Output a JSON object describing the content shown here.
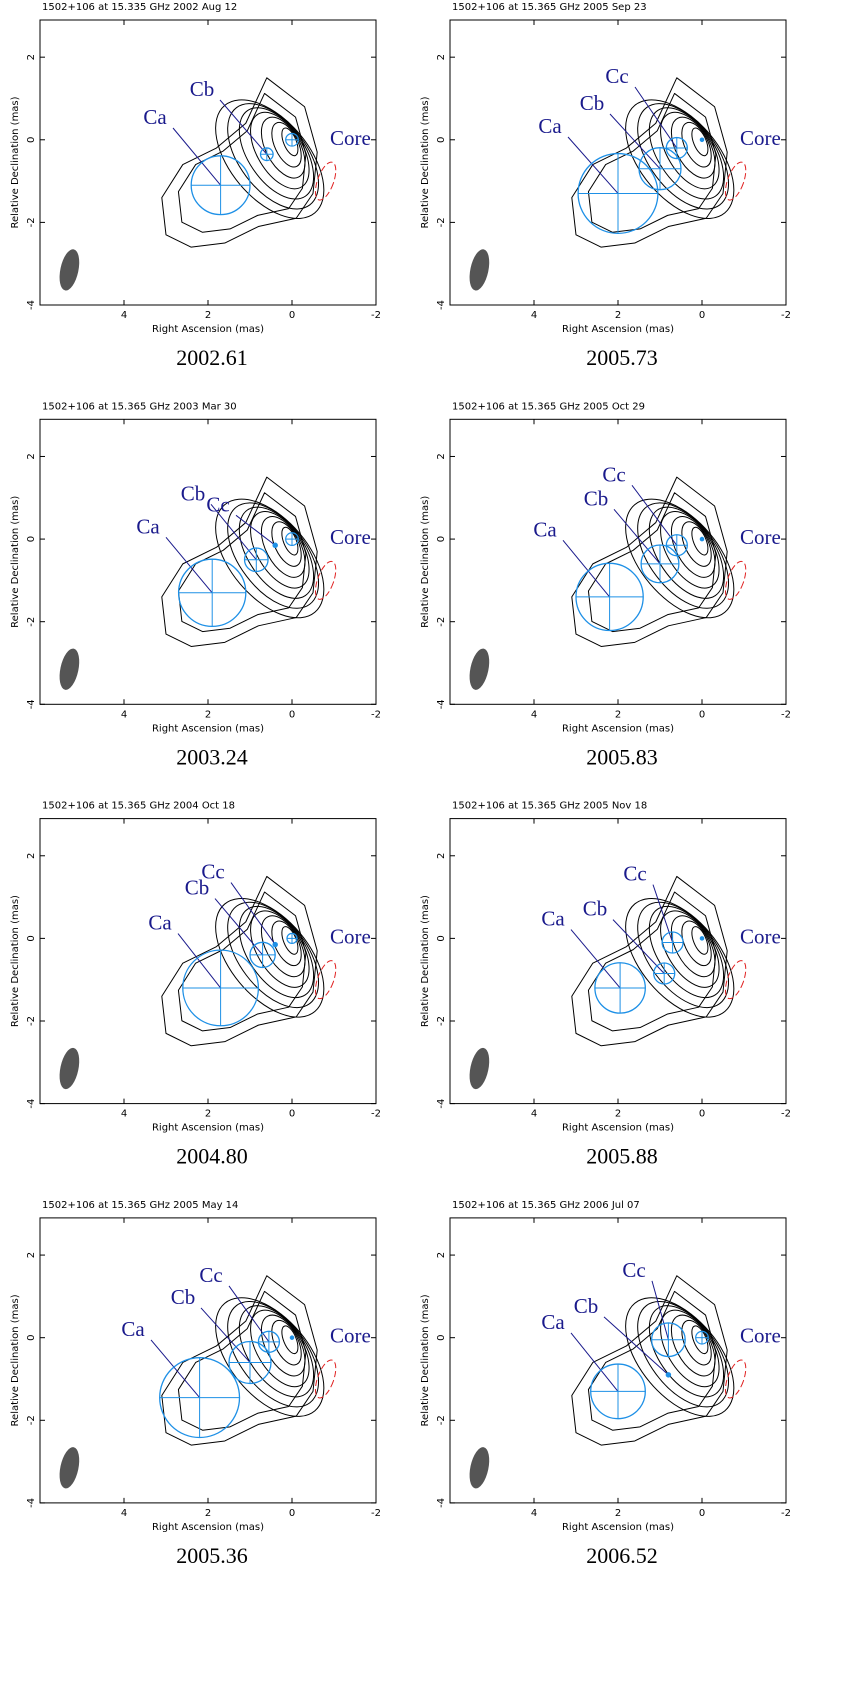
{
  "panels": [
    {
      "title": "1502+106 at 15.335 GHz 2002 Aug 12",
      "epoch": "2002.61",
      "components": [
        "Ca",
        "Cb"
      ],
      "core": "Core"
    },
    {
      "title": "1502+106 at 15.365 GHz 2005 Sep 23",
      "epoch": "2005.73",
      "components": [
        "Ca",
        "Cb",
        "Cc"
      ],
      "core": "Core"
    },
    {
      "title": "1502+106 at 15.365 GHz 2003 Mar 30",
      "epoch": "2003.24",
      "components": [
        "Ca",
        "Cb",
        "Cc"
      ],
      "core": "Core"
    },
    {
      "title": "1502+106 at 15.365 GHz 2005 Oct 29",
      "epoch": "2005.83",
      "components": [
        "Ca",
        "Cb",
        "Cc"
      ],
      "core": "Core"
    },
    {
      "title": "1502+106 at 15.365 GHz 2004 Oct 18",
      "epoch": "2004.80",
      "components": [
        "Ca",
        "Cb",
        "Cc"
      ],
      "core": "Core"
    },
    {
      "title": "1502+106 at 15.365 GHz 2005 Nov 18",
      "epoch": "2005.88",
      "components": [
        "Ca",
        "Cb",
        "Cc"
      ],
      "core": "Core"
    },
    {
      "title": "1502+106 at 15.365 GHz 2005 May 14",
      "epoch": "2005.36",
      "components": [
        "Ca",
        "Cb",
        "Cc"
      ],
      "core": "Core"
    },
    {
      "title": "1502+106 at 15.365 GHz 2006 Jul 07",
      "epoch": "2006.52",
      "components": [
        "Ca",
        "Cb",
        "Cc"
      ],
      "core": "Core"
    }
  ],
  "axes": {
    "xlabel": "Right Ascension   (mas)",
    "ylabel": "Relative Declination   (mas)",
    "xlim": [
      6,
      -2
    ],
    "ylim": [
      -4,
      2.9
    ],
    "xticks": [
      4,
      2,
      0,
      -2
    ],
    "yticks": [
      2,
      0,
      -2,
      -4
    ]
  }
}
